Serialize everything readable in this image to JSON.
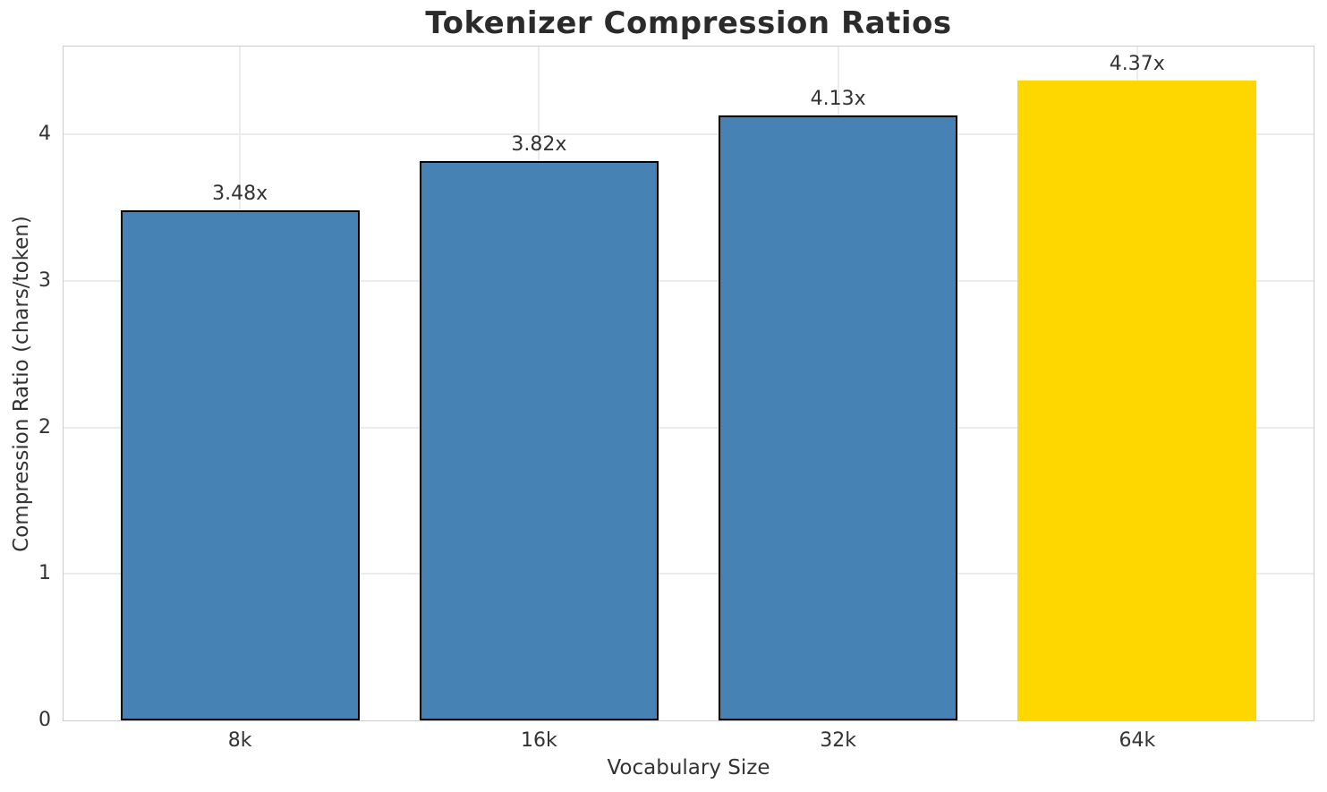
{
  "chart_data": {
    "type": "bar",
    "title": "Tokenizer Compression Ratios",
    "xlabel": "Vocabulary Size",
    "ylabel": "Compression Ratio (chars/token)",
    "categories": [
      "8k",
      "16k",
      "32k",
      "64k"
    ],
    "values": [
      3.48,
      3.82,
      4.13,
      4.37
    ],
    "bar_labels": [
      "3.48x",
      "3.82x",
      "4.13x",
      "4.37x"
    ],
    "yticks": [
      0,
      1,
      2,
      3,
      4
    ],
    "ylim": [
      0,
      4.6
    ],
    "xlim": [
      -0.59,
      3.59
    ],
    "bar_width": 0.8,
    "grid": true,
    "legend_position": "none",
    "bar_colors": [
      "#4682B4",
      "#4682B4",
      "#4682B4",
      "#FFD700"
    ],
    "bar_edge_colors": [
      "#000000",
      "#000000",
      "#000000",
      "none"
    ],
    "highlight_index": 3
  },
  "style": {
    "background_color": "#ffffff",
    "title_color": "#2b2b2b",
    "text_color": "#333333",
    "grid_color": "#ececec",
    "spine_color": "#cccccc",
    "accent_blue": "#4682B4",
    "highlight_gold": "#FFD700"
  }
}
